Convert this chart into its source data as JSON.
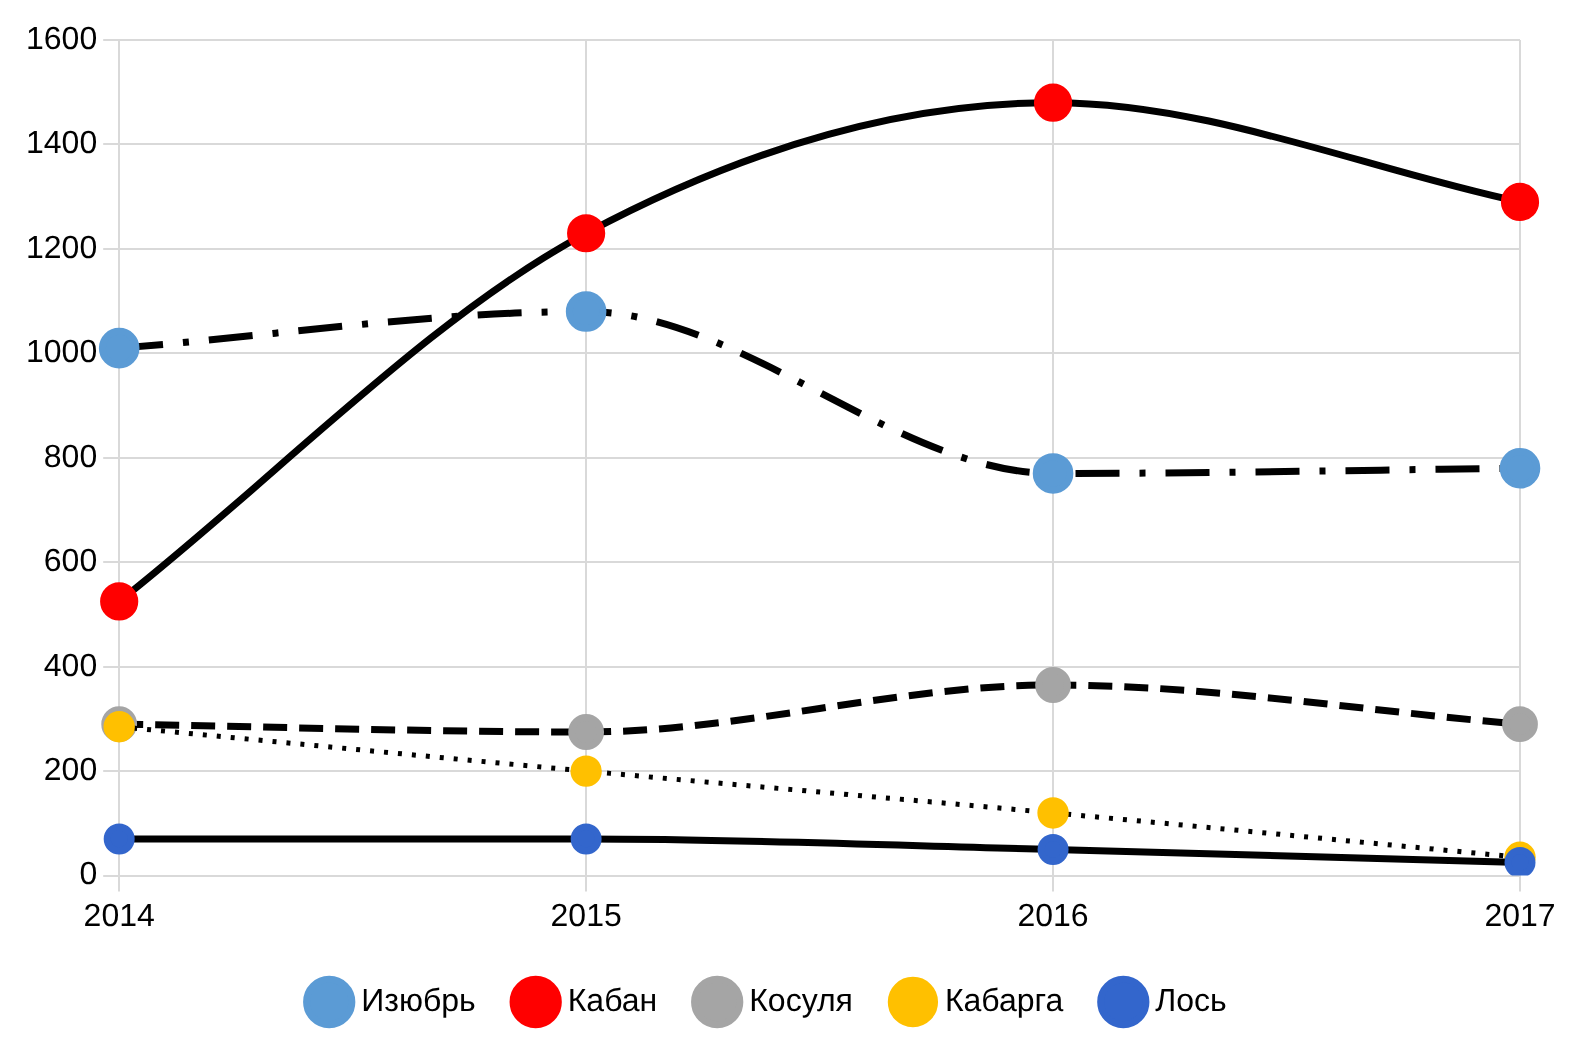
{
  "chart_data": {
    "type": "line",
    "categories": [
      "2014",
      "2015",
      "2016",
      "2017"
    ],
    "ylim": [
      0,
      1600
    ],
    "yticks": [
      0,
      200,
      400,
      600,
      800,
      1000,
      1200,
      1400,
      1600
    ],
    "grid": true,
    "legend": "bottom",
    "marker": "circle",
    "series": [
      {
        "name": "Изюбрь",
        "color": "#5b9bd5",
        "line_style": "dashdot",
        "values": [
          1010,
          1080,
          770,
          780
        ]
      },
      {
        "name": "Кабан",
        "color": "#ff0000",
        "line_style": "solid",
        "values": [
          525,
          1230,
          1480,
          1290
        ]
      },
      {
        "name": "Косуля",
        "color": "#a5a5a5",
        "line_style": "dashed",
        "values": [
          290,
          275,
          365,
          290
        ]
      },
      {
        "name": "Кабарга",
        "color": "#ffc000",
        "line_style": "dotted",
        "values": [
          285,
          200,
          120,
          35
        ]
      },
      {
        "name": "Лось",
        "color": "#3366cc",
        "line_style": "solid",
        "values": [
          70,
          70,
          50,
          25
        ]
      }
    ]
  }
}
